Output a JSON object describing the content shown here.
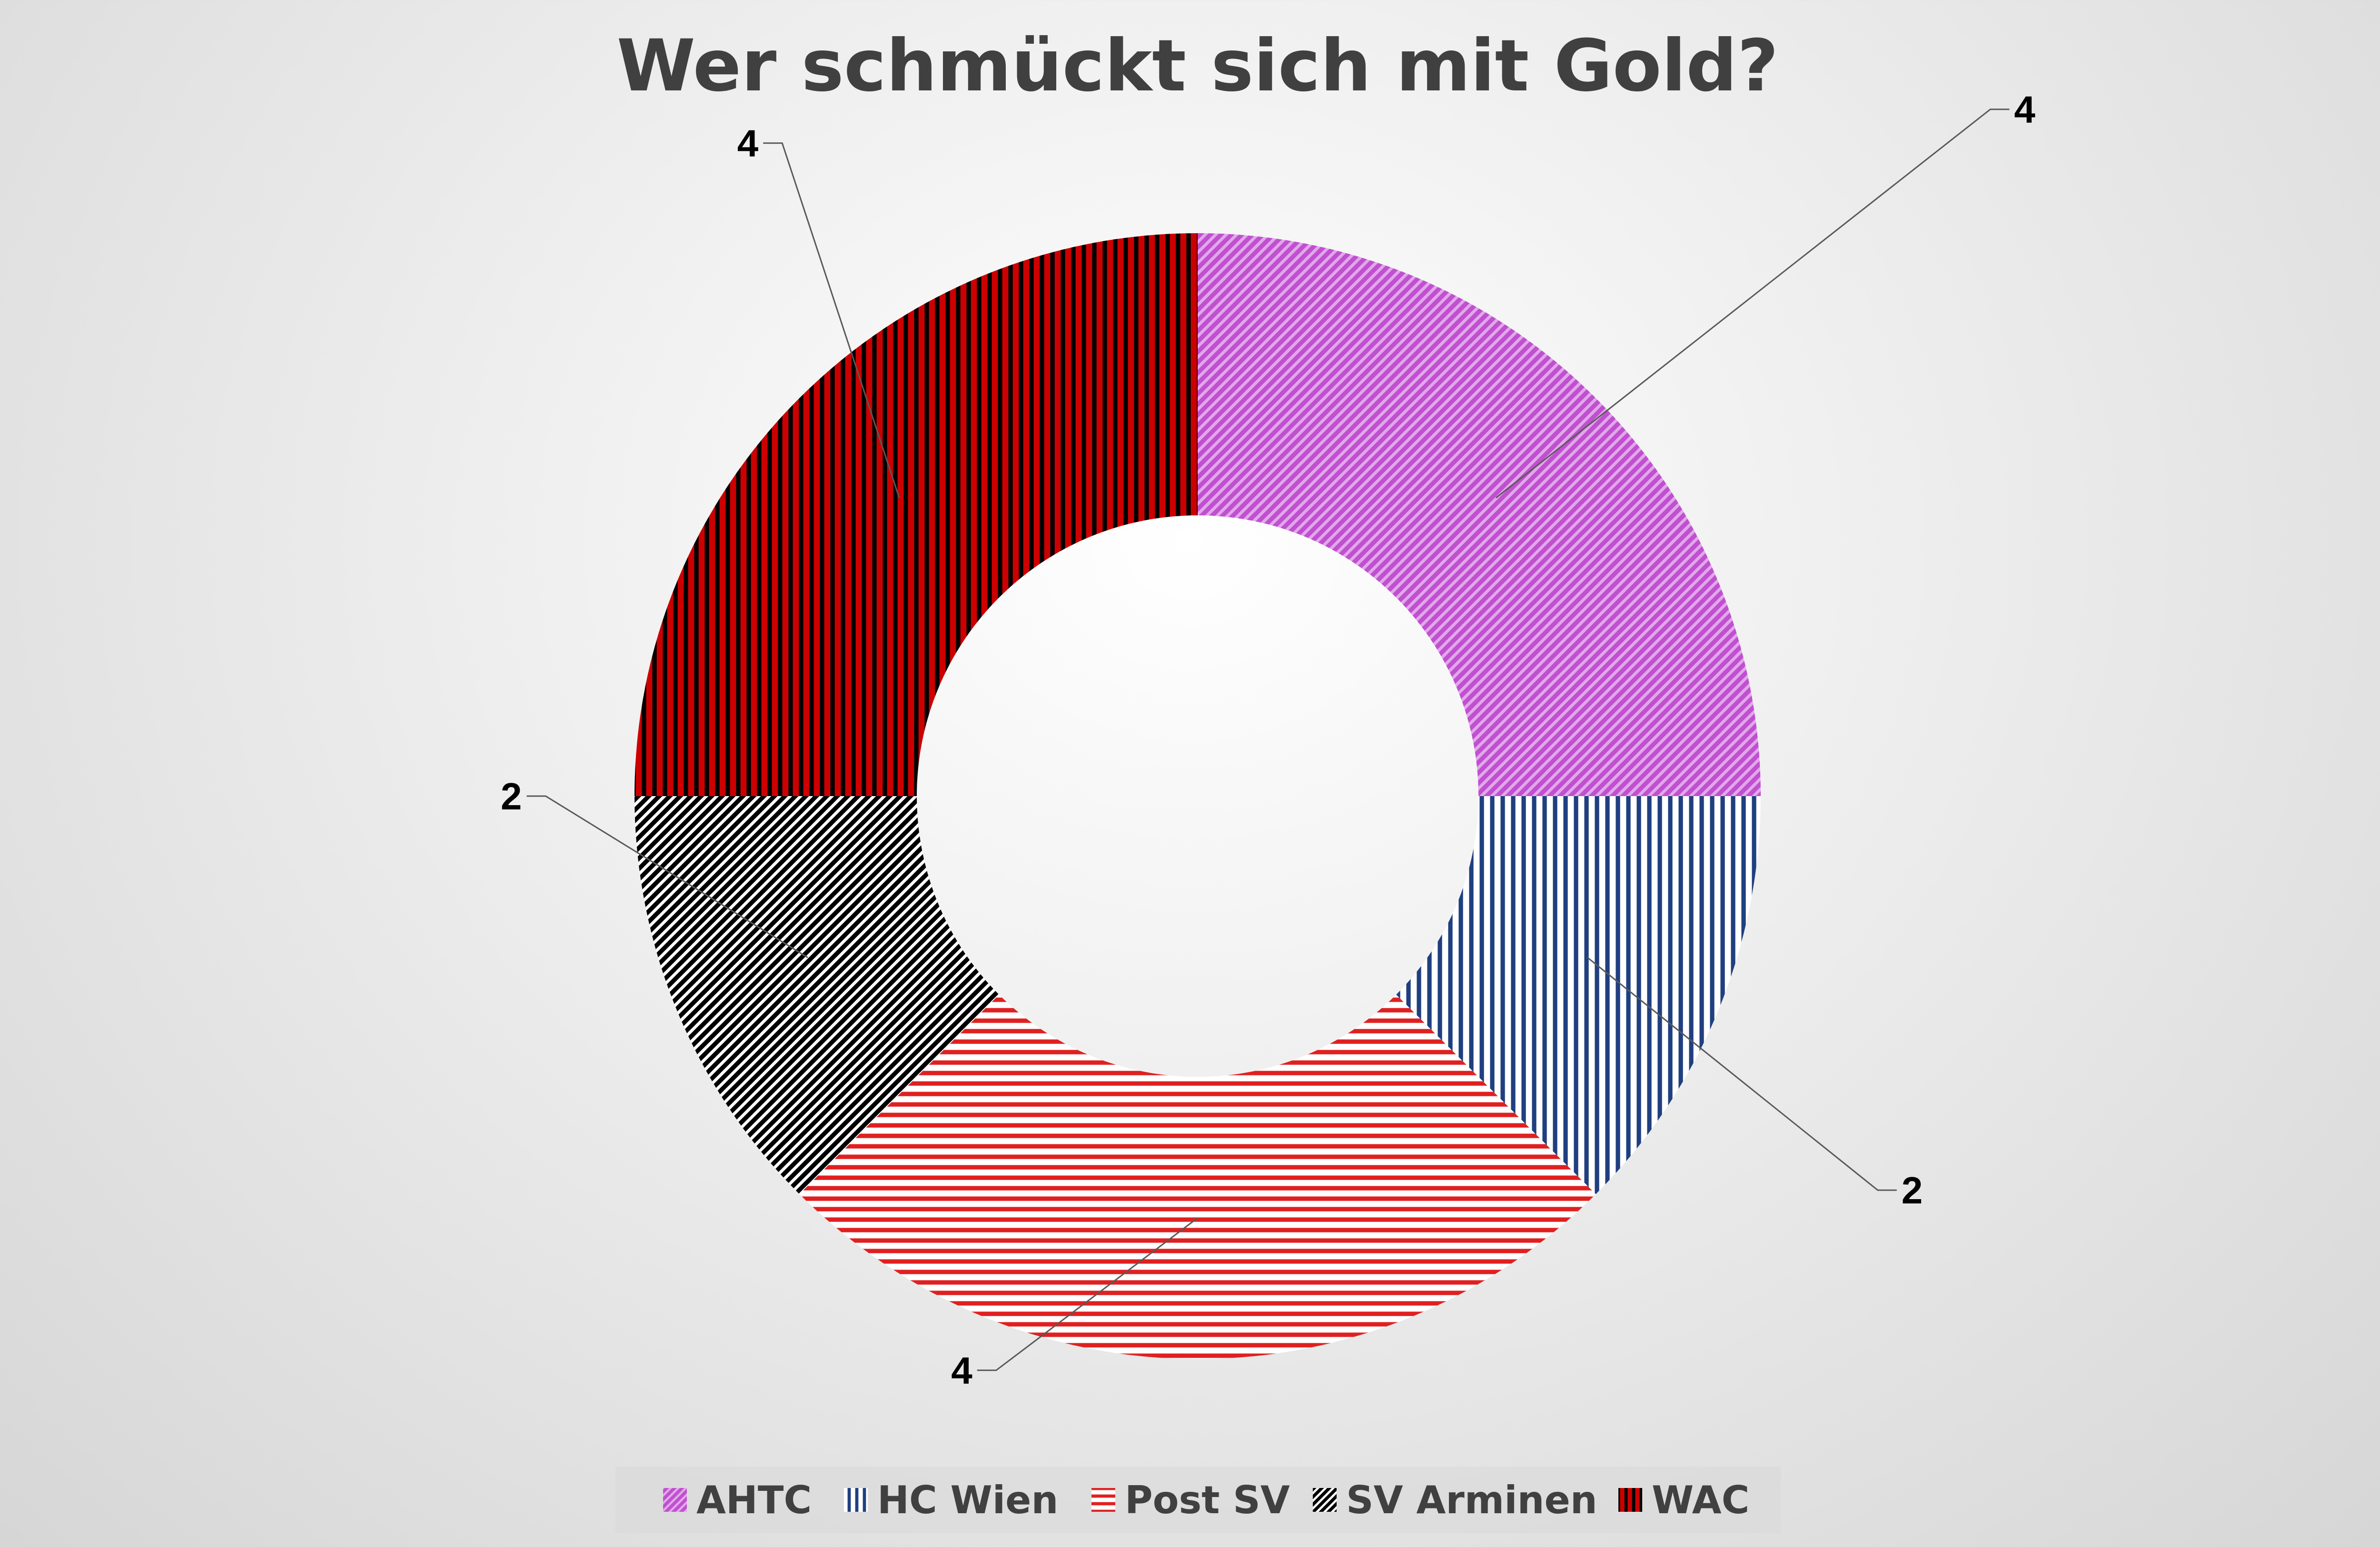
{
  "chart_data": {
    "type": "pie",
    "variant": "doughnut",
    "title": "Wer schmückt sich mit Gold?",
    "categories": [
      "AHTC",
      "HC Wien",
      "Post SV",
      "SV Arminen",
      "WAC"
    ],
    "values": [
      4,
      2,
      4,
      2,
      4
    ],
    "data_labels": [
      "4",
      "2",
      "4",
      "2",
      "4"
    ],
    "legend_position": "bottom",
    "colors": {
      "AHTC": {
        "fg": "#c050d0",
        "bg": "#e2a8ea",
        "pattern": "diagonal-up"
      },
      "HC Wien": {
        "fg": "#1f3f80",
        "bg": "#ffffff",
        "pattern": "vertical"
      },
      "Post SV": {
        "fg": "#e02020",
        "bg": "#ffffff",
        "pattern": "horizontal"
      },
      "SV Arminen": {
        "fg": "#000000",
        "bg": "#ffffff",
        "pattern": "diagonal-up"
      },
      "WAC": {
        "fg": "#000000",
        "bg": "#cc0000",
        "pattern": "vertical"
      }
    }
  }
}
